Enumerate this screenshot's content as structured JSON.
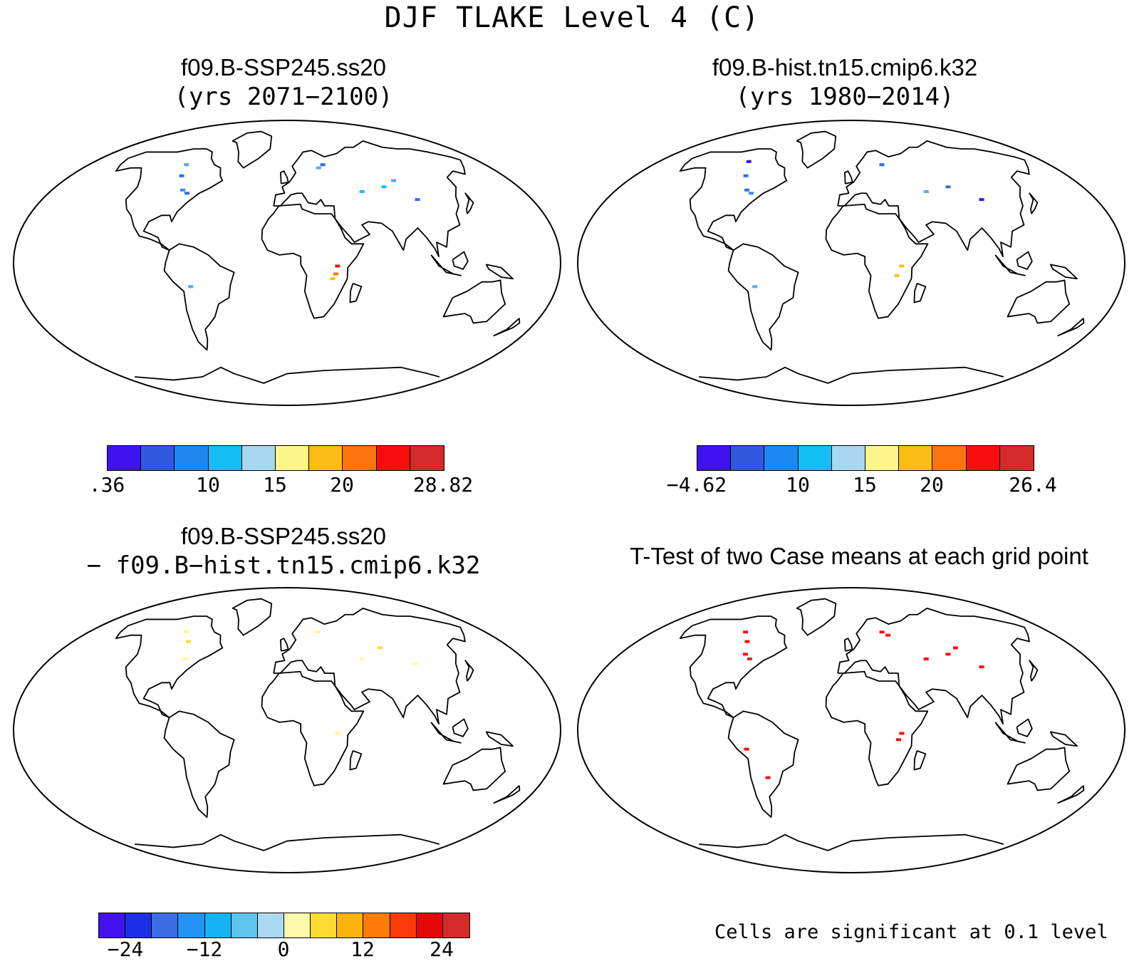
{
  "main_title": "DJF TLAKE Level 4 (C)",
  "panels": [
    {
      "title": "f09.B-SSP245.ss20",
      "subtitle": "(yrs 2071−2100)"
    },
    {
      "title": "f09.B-hist.tn15.cmip6.k32",
      "subtitle": "(yrs 1980−2014)"
    },
    {
      "title": "f09.B-SSP245.ss20",
      "subtitle": "− f09.B−hist.tn15.cmip6.k32"
    },
    {
      "title": "T-Test of two Case means at each grid point",
      "subtitle": ""
    }
  ],
  "colorbars": [
    {
      "colors": [
        "#3f12f0",
        "#3358e0",
        "#1e88f0",
        "#12bef5",
        "#a8d8f0",
        "#fff68a",
        "#fbbd14",
        "#fb730f",
        "#fb0d0d",
        "#d42a2a"
      ],
      "labels": [
        ".36",
        "10",
        "15",
        "20",
        "28.82"
      ]
    },
    {
      "colors": [
        "#3f12f0",
        "#3358e0",
        "#1e88f0",
        "#12bef5",
        "#a8d8f0",
        "#fff68a",
        "#fbbd14",
        "#fb730f",
        "#fb0d0d",
        "#d42a2a"
      ],
      "labels": [
        "−4.62",
        "10",
        "15",
        "20",
        "26.4"
      ]
    },
    {
      "colors": [
        "#4212f0",
        "#1a2fe6",
        "#3b6ee4",
        "#2394f4",
        "#12b4f2",
        "#5ec4ee",
        "#aadaf2",
        "#fff8a8",
        "#fedc32",
        "#fbb40c",
        "#fb7c08",
        "#fb3a08",
        "#e40808",
        "#d42a2a"
      ],
      "labels": [
        "−24",
        "−12",
        "0",
        "12",
        "24"
      ]
    }
  ],
  "significance_note": "Cells are significant at 0.1 level"
}
